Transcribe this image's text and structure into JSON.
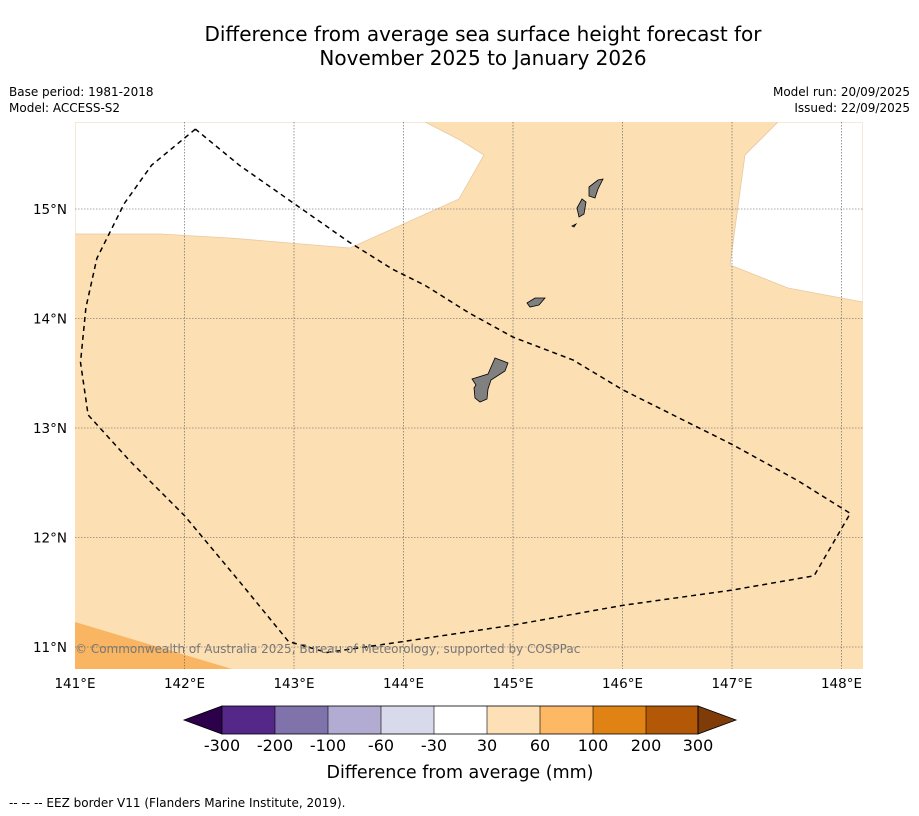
{
  "title": {
    "line1": "Difference from average sea surface height forecast for",
    "line2": "November 2025 to January 2026"
  },
  "meta_left": [
    "Base period: 1981-2018",
    "Model: ACCESS-S2"
  ],
  "meta_right": [
    "Model run: 20/09/2025",
    "Issued: 22/09/2025"
  ],
  "map": {
    "lon_range": [
      141.0,
      148.2
    ],
    "lat_range": [
      10.8,
      15.8
    ],
    "lon_ticks": [
      {
        "v": 141,
        "label": "141°E"
      },
      {
        "v": 142,
        "label": "142°E"
      },
      {
        "v": 143,
        "label": "143°E"
      },
      {
        "v": 144,
        "label": "144°E"
      },
      {
        "v": 145,
        "label": "145°E"
      },
      {
        "v": 146,
        "label": "146°E"
      },
      {
        "v": 147,
        "label": "147°E"
      },
      {
        "v": 148,
        "label": "148°E"
      }
    ],
    "lat_ticks": [
      {
        "v": 15,
        "label": "15°N"
      },
      {
        "v": 14,
        "label": "14°N"
      },
      {
        "v": 13,
        "label": "13°N"
      },
      {
        "v": 12,
        "label": "12°N"
      },
      {
        "v": 11,
        "label": "11°N"
      }
    ],
    "colors": {
      "band_30_60": "#fddfb4",
      "band_60_100": "#f9b561",
      "land": "#808080",
      "background": "#ffffff"
    },
    "eez_border": [
      [
        142.1,
        15.73
      ],
      [
        141.7,
        15.4
      ],
      [
        141.45,
        15.05
      ],
      [
        141.2,
        14.55
      ],
      [
        141.1,
        14.1
      ],
      [
        141.05,
        13.6
      ],
      [
        141.12,
        13.12
      ],
      [
        141.5,
        12.7
      ],
      [
        142.0,
        12.2
      ],
      [
        142.5,
        11.6
      ],
      [
        142.95,
        11.05
      ],
      [
        143.3,
        10.95
      ],
      [
        144.0,
        11.05
      ],
      [
        145.0,
        11.2
      ],
      [
        146.0,
        11.38
      ],
      [
        147.0,
        11.52
      ],
      [
        147.75,
        11.65
      ],
      [
        148.08,
        12.22
      ],
      [
        147.6,
        12.52
      ],
      [
        147.0,
        12.85
      ],
      [
        146.5,
        13.1
      ],
      [
        146.0,
        13.35
      ],
      [
        145.55,
        13.62
      ],
      [
        145.0,
        13.83
      ],
      [
        144.6,
        14.05
      ],
      [
        144.2,
        14.3
      ],
      [
        143.9,
        14.45
      ],
      [
        143.5,
        14.7
      ],
      [
        143.0,
        15.05
      ],
      [
        142.5,
        15.4
      ],
      [
        142.1,
        15.73
      ]
    ],
    "credit": "© Commonwealth of Australia 2025, Bureau of Meteorology, supported by COSPPac"
  },
  "colorbar": {
    "label": "Difference from average (mm)",
    "tick_labels": [
      "-300",
      "-200",
      "-100",
      "-60",
      "-30",
      "30",
      "60",
      "100",
      "200",
      "300"
    ],
    "colors": [
      "#2d004b",
      "#542788",
      "#8073ac",
      "#b2abd2",
      "#d8daeb",
      "#ffffff",
      "#fee0b6",
      "#fdb863",
      "#e08214",
      "#b35806",
      "#7f3b08"
    ]
  },
  "footer": "--  --  -- EEZ border V11 (Flanders Marine Institute, 2019)."
}
